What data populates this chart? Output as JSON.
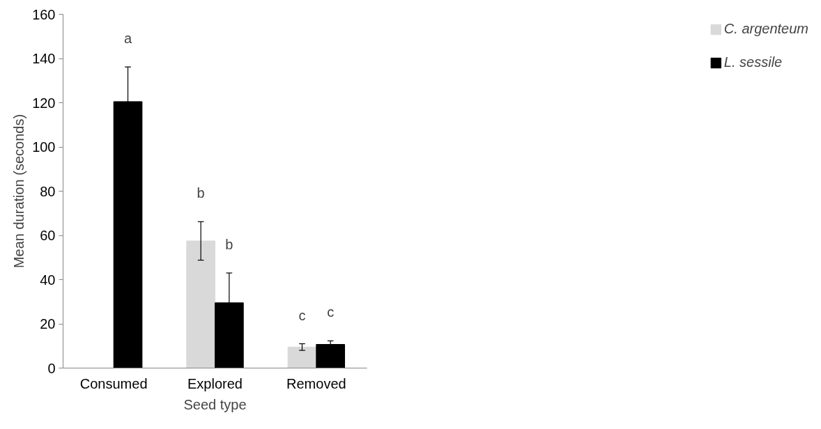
{
  "chart_data": {
    "type": "bar",
    "xlabel": "Seed type",
    "ylabel": "Mean duration (seconds)",
    "categories": [
      "Consumed",
      "Explored",
      "Removed"
    ],
    "series": [
      {
        "name": "C. argenteum",
        "color": "#d9d9d9",
        "values": [
          null,
          57.5,
          9.5
        ],
        "errors": [
          null,
          8.7,
          1.5
        ]
      },
      {
        "name": "L. sessile",
        "color": "#000000",
        "values": [
          120.5,
          29.5,
          10.7
        ],
        "errors": [
          15.7,
          13.5,
          1.6
        ]
      }
    ],
    "ylim": [
      0,
      160
    ],
    "yticks": [
      0,
      20,
      40,
      60,
      80,
      100,
      120,
      140,
      160
    ],
    "grid": false,
    "legend": "right",
    "annotations": [
      "a",
      "b",
      "b",
      "c",
      "c"
    ]
  }
}
